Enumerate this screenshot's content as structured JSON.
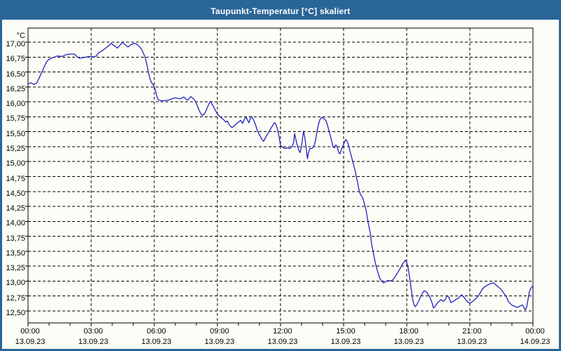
{
  "window": {
    "title": "Taupunkt-Temperatur [°C] skaliert"
  },
  "colors": {
    "frame": "#2a6598",
    "titlebar_text": "#ffffff",
    "background": "#fdfdf7",
    "grid": "#000000",
    "line": "#2222bb"
  },
  "chart_data": {
    "type": "line",
    "title": "Taupunkt-Temperatur [°C] skaliert",
    "unit_label": "°C",
    "grid": "dashed",
    "legend": "none",
    "y_axis": {
      "min": 12.5,
      "max": 17.0,
      "step": 0.25,
      "tick_labels": [
        "17,00",
        "16,75",
        "16,50",
        "16,25",
        "16,00",
        "15,75",
        "15,50",
        "15,25",
        "15,00",
        "14,75",
        "14,50",
        "14,25",
        "14,00",
        "13,75",
        "13,50",
        "13,25",
        "13,00",
        "12,75",
        "12,50"
      ]
    },
    "x_axis": {
      "range_hours": [
        0,
        24
      ],
      "major_tick_hours": 3,
      "minor_tick_hours": 1,
      "labels": [
        {
          "time": "00:00",
          "date": "13.09.23"
        },
        {
          "time": "03:00",
          "date": "13.09.23"
        },
        {
          "time": "06:00",
          "date": "13.09.23"
        },
        {
          "time": "09:00",
          "date": "13.09.23"
        },
        {
          "time": "12:00",
          "date": "13.09.23"
        },
        {
          "time": "15:00",
          "date": "13.09.23"
        },
        {
          "time": "18:00",
          "date": "13.09.23"
        },
        {
          "time": "21:00",
          "date": "13.09.23"
        },
        {
          "time": "00:00",
          "date": "14.09.23"
        }
      ]
    },
    "series": [
      {
        "name": "Taupunkt-Temperatur",
        "points": [
          [
            0,
            16.3
          ],
          [
            0.15,
            16.32
          ],
          [
            0.27,
            16.29
          ],
          [
            0.4,
            16.31
          ],
          [
            0.5,
            16.38
          ],
          [
            0.62,
            16.47
          ],
          [
            0.75,
            16.57
          ],
          [
            0.85,
            16.65
          ],
          [
            0.95,
            16.7
          ],
          [
            1.1,
            16.73
          ],
          [
            1.25,
            16.75
          ],
          [
            1.4,
            16.77
          ],
          [
            1.55,
            16.76
          ],
          [
            1.7,
            16.77
          ],
          [
            1.8,
            16.79
          ],
          [
            2.0,
            16.8
          ],
          [
            2.2,
            16.8
          ],
          [
            2.35,
            16.75
          ],
          [
            2.45,
            16.73
          ],
          [
            2.6,
            16.74
          ],
          [
            2.75,
            16.75
          ],
          [
            3.0,
            16.76
          ],
          [
            3.1,
            16.75
          ],
          [
            3.25,
            16.77
          ],
          [
            3.35,
            16.82
          ],
          [
            3.5,
            16.85
          ],
          [
            3.65,
            16.89
          ],
          [
            3.8,
            16.93
          ],
          [
            3.95,
            16.98
          ],
          [
            4.05,
            16.95
          ],
          [
            4.15,
            16.93
          ],
          [
            4.25,
            16.9
          ],
          [
            4.35,
            16.94
          ],
          [
            4.5,
            17.0
          ],
          [
            4.6,
            16.96
          ],
          [
            4.75,
            16.92
          ],
          [
            4.9,
            16.96
          ],
          [
            5.05,
            16.98
          ],
          [
            5.15,
            16.97
          ],
          [
            5.25,
            16.94
          ],
          [
            5.4,
            16.88
          ],
          [
            5.5,
            16.8
          ],
          [
            5.57,
            16.74
          ],
          [
            5.65,
            16.62
          ],
          [
            5.72,
            16.5
          ],
          [
            5.8,
            16.38
          ],
          [
            5.87,
            16.32
          ],
          [
            5.93,
            16.3
          ],
          [
            6.0,
            16.25
          ],
          [
            6.07,
            16.17
          ],
          [
            6.13,
            16.08
          ],
          [
            6.2,
            16.03
          ],
          [
            6.33,
            16.02
          ],
          [
            6.5,
            16.02
          ],
          [
            6.67,
            16.03
          ],
          [
            6.83,
            16.05
          ],
          [
            7.0,
            16.07
          ],
          [
            7.1,
            16.06
          ],
          [
            7.23,
            16.05
          ],
          [
            7.33,
            16.07
          ],
          [
            7.4,
            16.08
          ],
          [
            7.5,
            16.05
          ],
          [
            7.57,
            16.03
          ],
          [
            7.67,
            16.06
          ],
          [
            7.73,
            16.09
          ],
          [
            7.8,
            16.07
          ],
          [
            7.9,
            16.04
          ],
          [
            7.97,
            16.0
          ],
          [
            8.05,
            15.93
          ],
          [
            8.13,
            15.86
          ],
          [
            8.2,
            15.81
          ],
          [
            8.3,
            15.77
          ],
          [
            8.4,
            15.81
          ],
          [
            8.47,
            15.86
          ],
          [
            8.53,
            15.91
          ],
          [
            8.6,
            15.97
          ],
          [
            8.67,
            16.01
          ],
          [
            8.73,
            15.97
          ],
          [
            8.8,
            15.93
          ],
          [
            8.87,
            15.88
          ],
          [
            8.93,
            15.84
          ],
          [
            9.0,
            15.8
          ],
          [
            9.07,
            15.77
          ],
          [
            9.13,
            15.75
          ],
          [
            9.2,
            15.73
          ],
          [
            9.3,
            15.7
          ],
          [
            9.4,
            15.66
          ],
          [
            9.47,
            15.68
          ],
          [
            9.53,
            15.64
          ],
          [
            9.6,
            15.6
          ],
          [
            9.7,
            15.57
          ],
          [
            9.8,
            15.6
          ],
          [
            9.9,
            15.63
          ],
          [
            10.0,
            15.66
          ],
          [
            10.1,
            15.69
          ],
          [
            10.2,
            15.64
          ],
          [
            10.3,
            15.72
          ],
          [
            10.37,
            15.74
          ],
          [
            10.45,
            15.68
          ],
          [
            10.5,
            15.65
          ],
          [
            10.6,
            15.76
          ],
          [
            10.7,
            15.71
          ],
          [
            10.8,
            15.63
          ],
          [
            10.9,
            15.52
          ],
          [
            11.0,
            15.45
          ],
          [
            11.1,
            15.38
          ],
          [
            11.2,
            15.34
          ],
          [
            11.3,
            15.41
          ],
          [
            11.4,
            15.47
          ],
          [
            11.5,
            15.53
          ],
          [
            11.6,
            15.59
          ],
          [
            11.7,
            15.65
          ],
          [
            11.77,
            15.64
          ],
          [
            11.85,
            15.55
          ],
          [
            11.93,
            15.42
          ],
          [
            12.0,
            15.27
          ],
          [
            12.1,
            15.24
          ],
          [
            12.2,
            15.22
          ],
          [
            12.33,
            15.23
          ],
          [
            12.45,
            15.22
          ],
          [
            12.55,
            15.25
          ],
          [
            12.63,
            15.33
          ],
          [
            12.67,
            15.47
          ],
          [
            12.73,
            15.37
          ],
          [
            12.8,
            15.27
          ],
          [
            12.87,
            15.19
          ],
          [
            12.93,
            15.15
          ],
          [
            13.0,
            15.25
          ],
          [
            13.05,
            15.4
          ],
          [
            13.1,
            15.51
          ],
          [
            13.17,
            15.37
          ],
          [
            13.23,
            15.2
          ],
          [
            13.28,
            15.05
          ],
          [
            13.33,
            15.15
          ],
          [
            13.4,
            15.22
          ],
          [
            13.5,
            15.22
          ],
          [
            13.6,
            15.27
          ],
          [
            13.67,
            15.36
          ],
          [
            13.73,
            15.5
          ],
          [
            13.8,
            15.62
          ],
          [
            13.87,
            15.7
          ],
          [
            13.97,
            15.74
          ],
          [
            14.07,
            15.72
          ],
          [
            14.17,
            15.68
          ],
          [
            14.25,
            15.59
          ],
          [
            14.33,
            15.48
          ],
          [
            14.42,
            15.36
          ],
          [
            14.5,
            15.25
          ],
          [
            14.57,
            15.23
          ],
          [
            14.63,
            15.28
          ],
          [
            14.7,
            15.24
          ],
          [
            14.77,
            15.15
          ],
          [
            14.83,
            15.13
          ],
          [
            14.9,
            15.21
          ],
          [
            15.0,
            15.29
          ],
          [
            15.1,
            15.37
          ],
          [
            15.17,
            15.34
          ],
          [
            15.23,
            15.28
          ],
          [
            15.3,
            15.18
          ],
          [
            15.4,
            15.05
          ],
          [
            15.47,
            14.95
          ],
          [
            15.55,
            14.85
          ],
          [
            15.6,
            14.75
          ],
          [
            15.67,
            14.64
          ],
          [
            15.73,
            14.53
          ],
          [
            15.8,
            14.45
          ],
          [
            15.87,
            14.42
          ],
          [
            15.93,
            14.37
          ],
          [
            16.0,
            14.28
          ],
          [
            16.07,
            14.18
          ],
          [
            16.13,
            14.05
          ],
          [
            16.2,
            13.92
          ],
          [
            16.27,
            13.8
          ],
          [
            16.33,
            13.62
          ],
          [
            16.4,
            13.5
          ],
          [
            16.47,
            13.37
          ],
          [
            16.53,
            13.27
          ],
          [
            16.6,
            13.18
          ],
          [
            16.67,
            13.1
          ],
          [
            16.73,
            13.04
          ],
          [
            16.83,
            12.99
          ],
          [
            16.9,
            12.97
          ],
          [
            17.0,
            12.99
          ],
          [
            17.1,
            13.01
          ],
          [
            17.2,
            13.0
          ],
          [
            17.33,
            13.02
          ],
          [
            17.43,
            13.06
          ],
          [
            17.53,
            13.12
          ],
          [
            17.67,
            13.2
          ],
          [
            17.77,
            13.27
          ],
          [
            17.87,
            13.32
          ],
          [
            17.93,
            13.35
          ],
          [
            18.0,
            13.31
          ],
          [
            18.07,
            13.22
          ],
          [
            18.13,
            13.08
          ],
          [
            18.2,
            12.9
          ],
          [
            18.27,
            12.72
          ],
          [
            18.33,
            12.62
          ],
          [
            18.4,
            12.57
          ],
          [
            18.47,
            12.6
          ],
          [
            18.57,
            12.67
          ],
          [
            18.67,
            12.75
          ],
          [
            18.77,
            12.81
          ],
          [
            18.83,
            12.84
          ],
          [
            18.93,
            12.82
          ],
          [
            19.0,
            12.79
          ],
          [
            19.1,
            12.73
          ],
          [
            19.2,
            12.64
          ],
          [
            19.27,
            12.55
          ],
          [
            19.33,
            12.57
          ],
          [
            19.43,
            12.62
          ],
          [
            19.53,
            12.66
          ],
          [
            19.63,
            12.69
          ],
          [
            19.73,
            12.66
          ],
          [
            19.83,
            12.69
          ],
          [
            19.93,
            12.76
          ],
          [
            20.0,
            12.73
          ],
          [
            20.1,
            12.64
          ],
          [
            20.2,
            12.66
          ],
          [
            20.33,
            12.69
          ],
          [
            20.47,
            12.72
          ],
          [
            20.6,
            12.77
          ],
          [
            20.7,
            12.74
          ],
          [
            20.8,
            12.69
          ],
          [
            20.9,
            12.65
          ],
          [
            21.0,
            12.63
          ],
          [
            21.1,
            12.65
          ],
          [
            21.2,
            12.68
          ],
          [
            21.33,
            12.72
          ],
          [
            21.47,
            12.79
          ],
          [
            21.6,
            12.87
          ],
          [
            21.73,
            12.91
          ],
          [
            21.87,
            12.94
          ],
          [
            22.0,
            12.96
          ],
          [
            22.1,
            12.97
          ],
          [
            22.2,
            12.95
          ],
          [
            22.33,
            12.91
          ],
          [
            22.43,
            12.88
          ],
          [
            22.53,
            12.84
          ],
          [
            22.63,
            12.79
          ],
          [
            22.73,
            12.74
          ],
          [
            22.83,
            12.66
          ],
          [
            22.93,
            12.62
          ],
          [
            23.03,
            12.59
          ],
          [
            23.13,
            12.58
          ],
          [
            23.23,
            12.56
          ],
          [
            23.33,
            12.57
          ],
          [
            23.43,
            12.59
          ],
          [
            23.5,
            12.6
          ],
          [
            23.57,
            12.56
          ],
          [
            23.63,
            12.52
          ],
          [
            23.7,
            12.56
          ],
          [
            23.77,
            12.7
          ],
          [
            23.83,
            12.82
          ],
          [
            23.9,
            12.88
          ],
          [
            23.97,
            12.91
          ]
        ]
      }
    ]
  }
}
